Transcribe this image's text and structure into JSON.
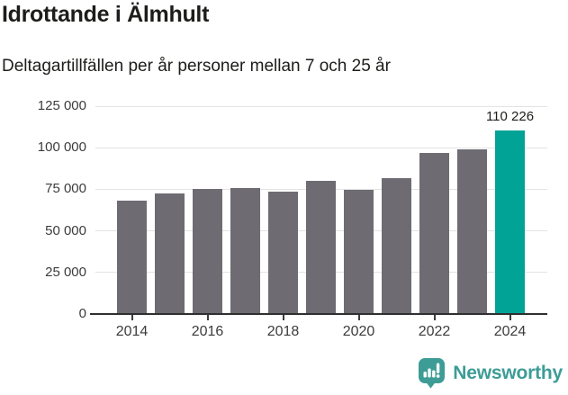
{
  "header": {
    "title": "Idrottande i Älmhult",
    "subtitle": "Deltagartillfällen per år personer mellan 7 och 25 år"
  },
  "chart_data": {
    "type": "bar",
    "title": "Idrottande i Älmhult",
    "subtitle": "Deltagartillfällen per år personer mellan 7 och 25 år",
    "categories": [
      2014,
      2015,
      2016,
      2017,
      2018,
      2019,
      2020,
      2021,
      2022,
      2023,
      2024
    ],
    "values": [
      68000,
      72500,
      75000,
      75500,
      73500,
      80000,
      74500,
      81500,
      97000,
      99000,
      110226
    ],
    "highlight_index": 10,
    "annotation": {
      "index": 10,
      "text": "110 226"
    },
    "bar_color": "#6e6c72",
    "highlight_color": "#00a396",
    "grid": "horizontal",
    "legend": "none",
    "ylim": [
      0,
      125000
    ],
    "yticks": [
      {
        "value": 0,
        "label": "0"
      },
      {
        "value": 25000,
        "label": "25 000"
      },
      {
        "value": 50000,
        "label": "50 000"
      },
      {
        "value": 75000,
        "label": "75 000"
      },
      {
        "value": 100000,
        "label": "100 000"
      },
      {
        "value": 125000,
        "label": "125 000"
      }
    ],
    "xticks": [
      {
        "value": 2014,
        "label": "2014"
      },
      {
        "value": 2016,
        "label": "2016"
      },
      {
        "value": 2018,
        "label": "2018"
      },
      {
        "value": 2020,
        "label": "2020"
      },
      {
        "value": 2022,
        "label": "2022"
      },
      {
        "value": 2024,
        "label": "2024"
      }
    ]
  },
  "footer": {
    "brand": "Newsworthy",
    "brand_color": "#3d9c96",
    "logo_icon": "bar-chart-speech-bubble-icon"
  }
}
